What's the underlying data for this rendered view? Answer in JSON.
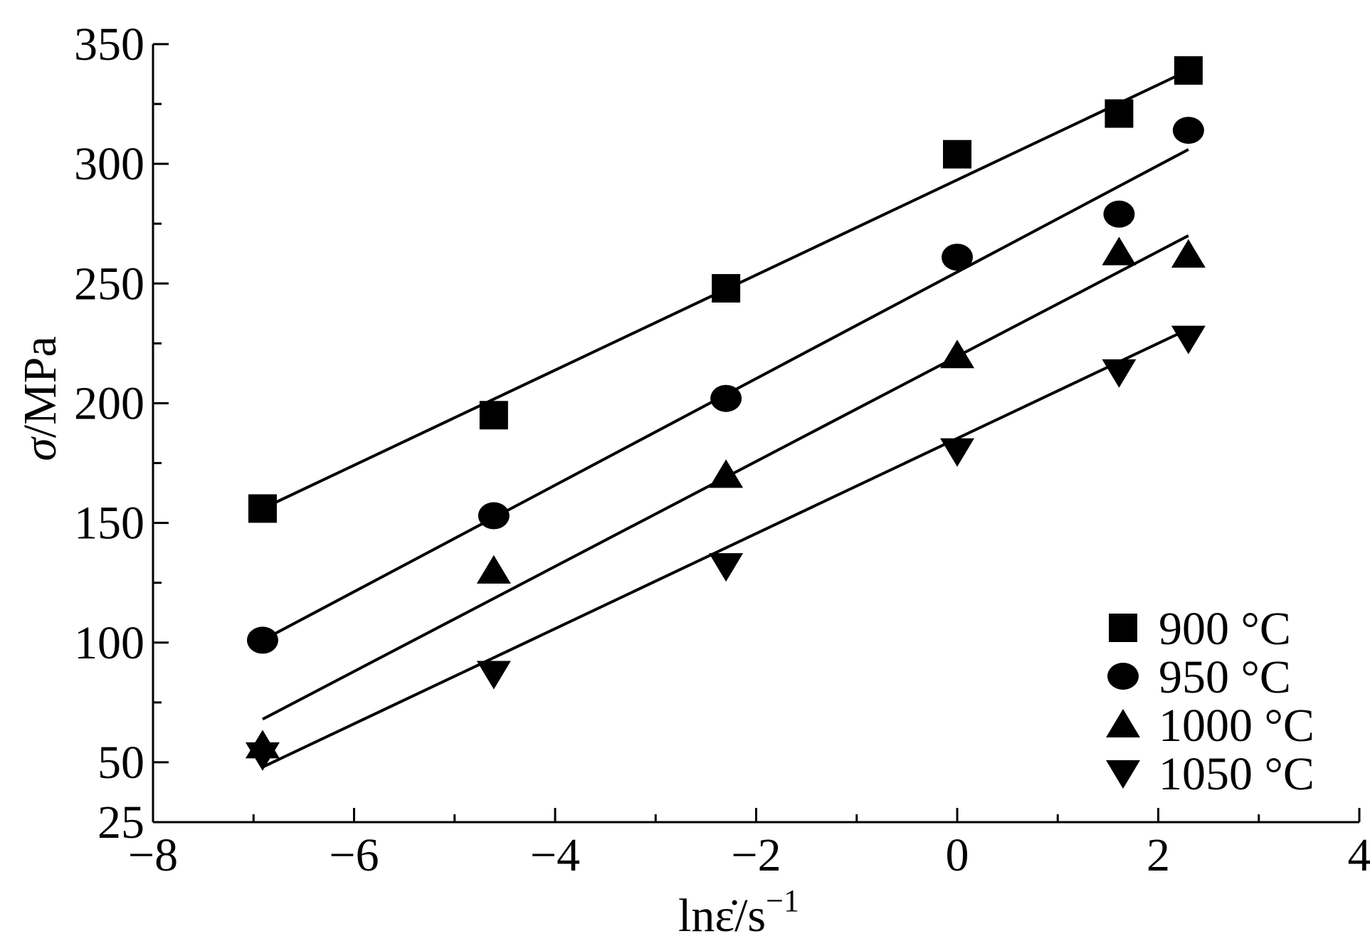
{
  "chart_data": {
    "type": "scatter",
    "title": "",
    "xlabel": "lnε̇/s",
    "xlabel_superscript": "−1",
    "ylabel_symbol": "σ",
    "ylabel_unit": "/MPa",
    "xlim": [
      -8,
      4
    ],
    "ylim": [
      25,
      350
    ],
    "x_ticks": [
      -8,
      -6,
      -4,
      -2,
      0,
      2,
      4
    ],
    "x_tick_labels": [
      "−8",
      "−6",
      "−4",
      "−2",
      "0",
      "2",
      "4"
    ],
    "y_ticks": [
      25,
      50,
      100,
      150,
      200,
      250,
      300,
      350
    ],
    "y_tick_labels": [
      "25",
      "50",
      "100",
      "150",
      "200",
      "250",
      "300",
      "350"
    ],
    "grid": false,
    "legend_position": "bottom-right",
    "series": [
      {
        "name": "900 °C",
        "marker": "square",
        "points": [
          [
            -6.91,
            156
          ],
          [
            -4.61,
            195
          ],
          [
            -2.3,
            248
          ],
          [
            0,
            304
          ],
          [
            1.61,
            321
          ],
          [
            2.3,
            339
          ]
        ],
        "fit": [
          [
            -6.91,
            156
          ],
          [
            2.3,
            339
          ]
        ]
      },
      {
        "name": "950 °C",
        "marker": "circle",
        "points": [
          [
            -6.91,
            101
          ],
          [
            -4.61,
            153
          ],
          [
            -2.3,
            202
          ],
          [
            0,
            261
          ],
          [
            1.61,
            279
          ],
          [
            2.3,
            314
          ]
        ],
        "fit": [
          [
            -6.91,
            101
          ],
          [
            2.3,
            306
          ]
        ]
      },
      {
        "name": "1000 °C",
        "marker": "triangle-up",
        "points": [
          [
            -6.91,
            57
          ],
          [
            -4.61,
            130
          ],
          [
            -2.3,
            170
          ],
          [
            0,
            220
          ],
          [
            1.61,
            263
          ],
          [
            2.3,
            262
          ]
        ],
        "fit": [
          [
            -6.91,
            68
          ],
          [
            2.3,
            270
          ]
        ]
      },
      {
        "name": "1050 °C",
        "marker": "triangle-down",
        "points": [
          [
            -6.91,
            53
          ],
          [
            -4.61,
            87
          ],
          [
            -2.3,
            132
          ],
          [
            0,
            180
          ],
          [
            1.61,
            213
          ],
          [
            2.3,
            227
          ]
        ],
        "fit": [
          [
            -6.91,
            48
          ],
          [
            2.3,
            231
          ]
        ]
      }
    ]
  }
}
